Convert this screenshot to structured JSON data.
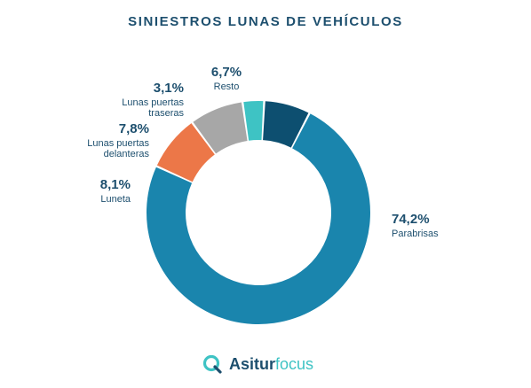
{
  "colors": {
    "title": "#1d4f6e",
    "label": "#1d4f6e",
    "brand_dark": "#1d4f6e",
    "brand_accent": "#3ec3c4"
  },
  "chart_data": {
    "type": "pie",
    "title": "SINIESTROS LUNAS DE VEHÍCULOS",
    "donut": true,
    "slices": [
      {
        "name": "Resto",
        "value": 6.7,
        "label": "6,7%",
        "color": "#0d4f70"
      },
      {
        "name": "Parabrisas",
        "value": 74.2,
        "label": "74,2%",
        "color": "#1a85ad"
      },
      {
        "name": "Luneta",
        "value": 8.1,
        "label": "8,1%",
        "color": "#ec7748"
      },
      {
        "name": "Lunas puertas delanteras",
        "value": 7.8,
        "label": "7,8%",
        "color": "#a7a7a7"
      },
      {
        "name": "Lunas puertas traseras",
        "value": 3.1,
        "label": "3,1%",
        "color": "#3ec3c4"
      }
    ]
  },
  "footer": {
    "brand_part1": "Asitur",
    "brand_part2": "focus",
    "logo_icon": "asitur-q-logo-icon"
  }
}
